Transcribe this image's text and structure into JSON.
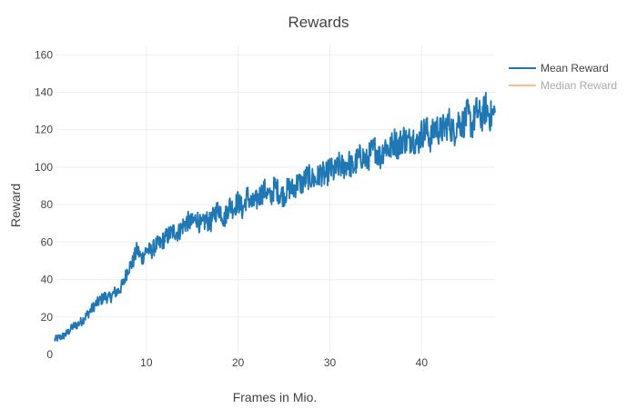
{
  "chart_data": {
    "type": "line",
    "title": "Rewards",
    "xlabel": "Frames in Mio.",
    "ylabel": "Reward",
    "xlim": [
      0,
      48
    ],
    "ylim": [
      0,
      165
    ],
    "x_ticks": [
      10,
      20,
      30,
      40
    ],
    "y_ticks": [
      0,
      20,
      40,
      60,
      80,
      100,
      120,
      140,
      160
    ],
    "grid": true,
    "legend_position": "top-right",
    "series": [
      {
        "name": "Mean Reward",
        "color": "#1f77b4",
        "visible": true,
        "x": [
          0,
          0.5,
          1,
          1.5,
          2,
          2.5,
          3,
          3.5,
          4,
          4.5,
          5,
          5.5,
          6,
          6.5,
          7,
          7.5,
          8,
          8.5,
          9,
          9.5,
          10,
          10.5,
          11,
          11.5,
          12,
          12.5,
          13,
          13.5,
          14,
          14.5,
          15,
          15.5,
          16,
          16.5,
          17,
          17.5,
          18,
          18.5,
          19,
          19.5,
          20,
          20.5,
          21,
          21.5,
          22,
          22.5,
          23,
          23.5,
          24,
          24.5,
          25,
          25.5,
          26,
          26.5,
          27,
          27.5,
          28,
          28.5,
          29,
          29.5,
          30,
          30.5,
          31,
          31.5,
          32,
          32.5,
          33,
          33.5,
          34,
          34.5,
          35,
          35.5,
          36,
          36.5,
          37,
          37.5,
          38,
          38.5,
          39,
          39.5,
          40,
          40.5,
          41,
          41.5,
          42,
          42.5,
          43,
          43.5,
          44,
          44.5,
          45,
          45.5,
          46,
          46.5,
          47,
          47.5,
          48
        ],
        "y": [
          8,
          9,
          10,
          12,
          15,
          16,
          18,
          21,
          24,
          27,
          29,
          31,
          30,
          33,
          34,
          38,
          46,
          49,
          56,
          51,
          56,
          55,
          58,
          59,
          62,
          64,
          66,
          65,
          69,
          71,
          70,
          73,
          68,
          72,
          70,
          76,
          78,
          72,
          80,
          78,
          82,
          77,
          85,
          80,
          82,
          86,
          88,
          83,
          90,
          86,
          85,
          89,
          88,
          92,
          91,
          95,
          94,
          93,
          97,
          95,
          99,
          97,
          101,
          100,
          103,
          99,
          104,
          106,
          103,
          108,
          110,
          105,
          112,
          109,
          114,
          111,
          116,
          113,
          117,
          112,
          118,
          120,
          115,
          122,
          119,
          121,
          124,
          118,
          125,
          123,
          128,
          122,
          130,
          126,
          132,
          127,
          129
        ]
      },
      {
        "name": "Median Reward",
        "color": "#ffbb88",
        "visible": false,
        "x": [],
        "y": []
      }
    ]
  }
}
